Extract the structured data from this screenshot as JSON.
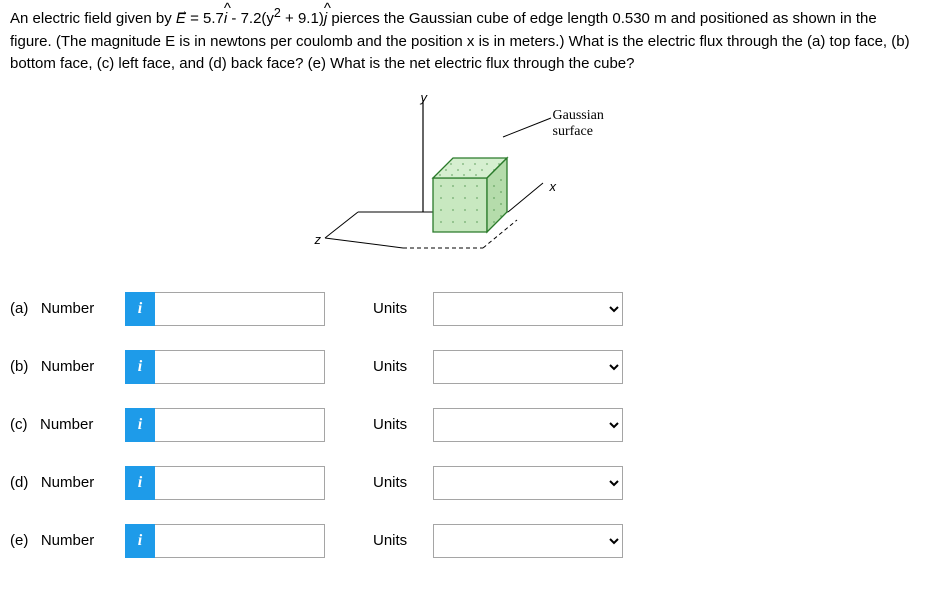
{
  "problem": {
    "line1_pre": "An electric field given by ",
    "eq_E": "E",
    "eq_mid1": " = 5.7",
    "eq_i": "i",
    "eq_mid2": " - 7.2(y",
    "eq_sup": "2",
    "eq_mid3": " + 9.1)",
    "eq_j": "j",
    "line1_post": " pierces the Gaussian cube of edge length 0.530 m and positioned as shown in the",
    "line2": "figure. (The magnitude E is in newtons per coulomb and the position x is in meters.) What is the electric flux through the (a) top face,",
    "line3": "(b) bottom face, (c) left face, and (d) back face? (e) What is the net electric flux through the cube?"
  },
  "figure": {
    "y_label": "y",
    "x_label": "x",
    "z_label": "z",
    "gaussian_line1": "Gaussian",
    "gaussian_line2": "surface",
    "cube_fill": "#c8e8c0",
    "cube_stroke": "#2a7a2a"
  },
  "parts": [
    {
      "label": "(a)",
      "number_text": "Number",
      "units_text": "Units",
      "info": "i"
    },
    {
      "label": "(b)",
      "number_text": "Number",
      "units_text": "Units",
      "info": "i"
    },
    {
      "label": "(c)",
      "number_text": "Number",
      "units_text": "Units",
      "info": "i"
    },
    {
      "label": "(d)",
      "number_text": "Number",
      "units_text": "Units",
      "info": "i"
    },
    {
      "label": "(e)",
      "number_text": "Number",
      "units_text": "Units",
      "info": "i"
    }
  ]
}
